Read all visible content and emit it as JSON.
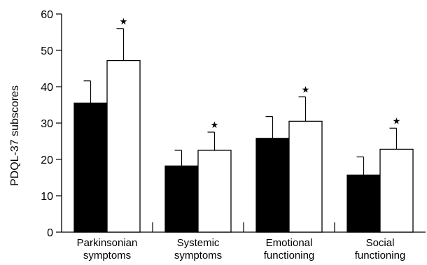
{
  "chart_data": {
    "type": "bar",
    "title": "",
    "ylabel": "PDQL-37 subscores",
    "xlabel": "",
    "ylim": [
      0,
      60
    ],
    "yticks": [
      0,
      10,
      20,
      30,
      40,
      50,
      60
    ],
    "grid": false,
    "legend": "none",
    "categories": [
      [
        "Parkinsonian",
        "symptoms"
      ],
      [
        "Systemic",
        "symptoms"
      ],
      [
        "Emotional",
        "functioning"
      ],
      [
        "Social",
        "functioning"
      ]
    ],
    "series": [
      {
        "fill": "#000000",
        "values": [
          35.5,
          18.2,
          25.8,
          15.7
        ],
        "errors": [
          6.1,
          4.3,
          6.0,
          5.0
        ],
        "marked": [
          false,
          false,
          false,
          false
        ]
      },
      {
        "fill": "#ffffff",
        "values": [
          47.2,
          22.5,
          30.5,
          22.8
        ],
        "errors": [
          8.8,
          5.0,
          6.7,
          5.8
        ],
        "marked": [
          true,
          true,
          true,
          true
        ]
      }
    ],
    "marker_symbol": "★"
  }
}
